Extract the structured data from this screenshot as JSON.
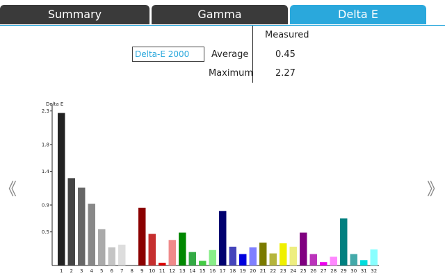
{
  "tabs": [
    {
      "label": "Summary",
      "active": false
    },
    {
      "label": "Gamma",
      "active": false
    },
    {
      "label": "Delta E",
      "active": true
    }
  ],
  "stats": {
    "column_header": "Measured",
    "metric_selector": "Delta-E 2000",
    "rows": [
      {
        "label": "Average",
        "value": "0.45"
      },
      {
        "label": "Maximum",
        "value": "2.27"
      }
    ]
  },
  "nav": {
    "prev": "《",
    "next": "》"
  },
  "colors": {
    "accent": "#2aa8dc",
    "tab_dark": "#3a3a3a"
  },
  "chart_data": {
    "type": "bar",
    "ylabel": "Delta E",
    "ylim": [
      0,
      2.4
    ],
    "yticks": [
      {
        "value": 0.5,
        "label": "0.5"
      },
      {
        "value": 0.9,
        "label": "0.9"
      },
      {
        "value": 1.4,
        "label": "1.4"
      },
      {
        "value": 1.8,
        "label": "1.8"
      },
      {
        "value": 2.3,
        "label": "2.3"
      }
    ],
    "categories": [
      "1",
      "2",
      "3",
      "4",
      "5",
      "6",
      "7",
      "8",
      "9",
      "10",
      "11",
      "12",
      "13",
      "14",
      "15",
      "16",
      "17",
      "18",
      "19",
      "20",
      "21",
      "22",
      "23",
      "24",
      "25",
      "26",
      "27",
      "28",
      "29",
      "30",
      "31",
      "32"
    ],
    "values": [
      2.27,
      1.3,
      1.16,
      0.92,
      0.54,
      0.27,
      0.31,
      0.0,
      0.86,
      0.47,
      0.04,
      0.38,
      0.49,
      0.2,
      0.07,
      0.23,
      0.81,
      0.28,
      0.17,
      0.27,
      0.34,
      0.18,
      0.33,
      0.28,
      0.49,
      0.17,
      0.05,
      0.13,
      0.7,
      0.17,
      0.08,
      0.24
    ],
    "colors": [
      "#222222",
      "#444444",
      "#666666",
      "#888888",
      "#aaaaaa",
      "#c4c4c4",
      "#dddddd",
      "#f3f3f3",
      "#8b0000",
      "#c62f2f",
      "#dd0000",
      "#f08a8a",
      "#008800",
      "#33aa44",
      "#44cc44",
      "#88ee88",
      "#00006f",
      "#4444bb",
      "#0000dd",
      "#7f7fff",
      "#7a7a00",
      "#b5b53c",
      "#f0f000",
      "#eeee80",
      "#800080",
      "#bb33bb",
      "#ee00ee",
      "#ff88ff",
      "#008080",
      "#44aaaa",
      "#00dddd",
      "#88ffff"
    ]
  }
}
